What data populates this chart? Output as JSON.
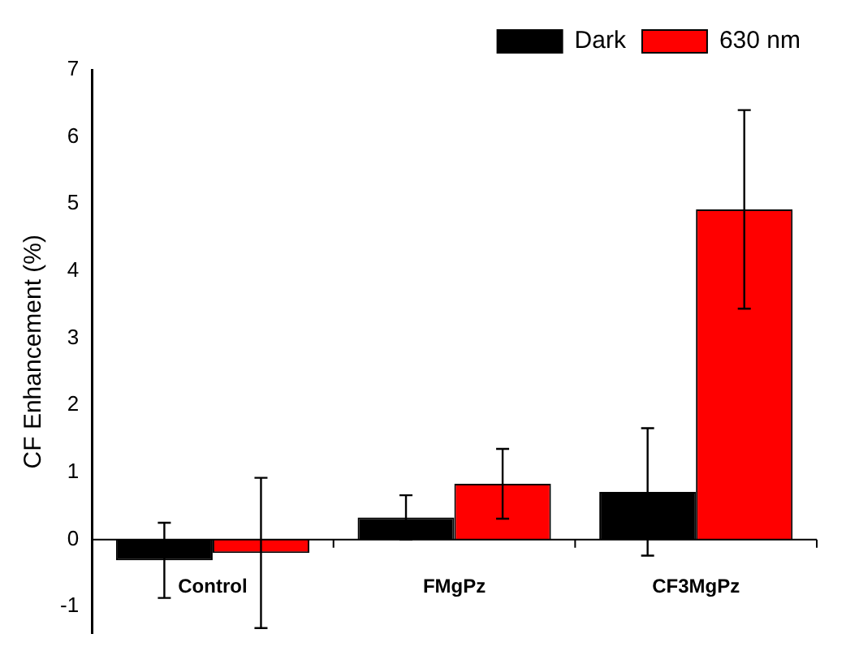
{
  "chart_data": {
    "type": "bar",
    "ylabel": "CF Enhancement (%)",
    "categories": [
      "Control",
      "FMgPz",
      "CF3MgPz"
    ],
    "series": [
      {
        "name": "Dark",
        "color": "#000000",
        "values": [
          -0.31,
          0.33,
          0.71
        ],
        "errors": [
          0.56,
          0.33,
          0.95
        ]
      },
      {
        "name": "630 nm",
        "color": "#ff0000",
        "values": [
          -0.2,
          0.83,
          4.92
        ],
        "errors": [
          1.12,
          0.52,
          1.48
        ]
      }
    ],
    "ylim": [
      -1.4,
      7
    ],
    "yticks": [
      -1,
      0,
      1,
      2,
      3,
      4,
      5,
      6,
      7
    ],
    "grid": false,
    "legend": "top right"
  }
}
